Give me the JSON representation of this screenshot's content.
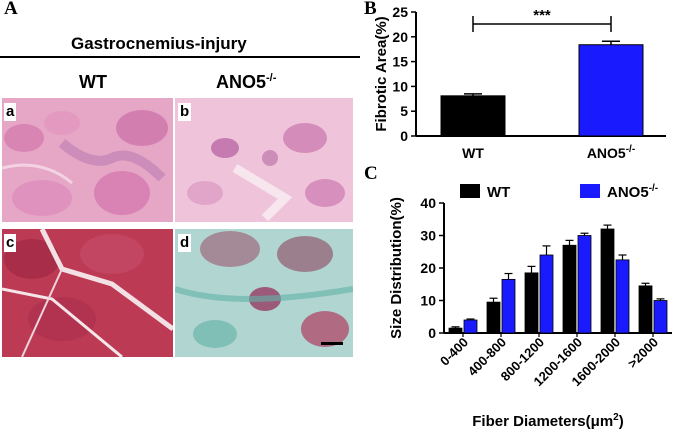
{
  "panel_a": {
    "letter": "A",
    "title": "Gastrocnemius-injury",
    "col_wt": "WT",
    "col_ano5": "ANO5",
    "col_ano5_sup": "-/-",
    "tiles": [
      "a",
      "b",
      "c",
      "d"
    ]
  },
  "chart_data": [
    {
      "panel": "B",
      "type": "bar",
      "categories": [
        "WT",
        "ANO5-/-"
      ],
      "category_labels": [
        {
          "main": "WT",
          "sup": ""
        },
        {
          "main": "ANO5",
          "sup": "-/-"
        }
      ],
      "values": [
        8.1,
        18.4
      ],
      "errors": [
        0.4,
        0.7
      ],
      "colors": [
        "#000000",
        "#1a1aff"
      ],
      "ylabel": "Fibrotic Area(%)",
      "ylim": [
        0,
        25
      ],
      "yticks": [
        0,
        5,
        10,
        15,
        20,
        25
      ],
      "significance": "***"
    },
    {
      "panel": "C",
      "type": "bar",
      "categories": [
        "0-400",
        "400-800",
        "800-1200",
        "1200-1600",
        "1600-2000",
        ">2000"
      ],
      "series": [
        {
          "name": "WT",
          "values": [
            1.5,
            9.5,
            18.5,
            27,
            32,
            14.5
          ],
          "errors": [
            0.4,
            1.2,
            2.0,
            1.5,
            1.2,
            0.8
          ],
          "color": "#000000"
        },
        {
          "name": "ANO5-/-",
          "name_main": "ANO5",
          "name_sup": "-/-",
          "values": [
            4,
            16.5,
            24,
            30,
            22.5,
            10
          ],
          "errors": [
            0.3,
            1.8,
            2.8,
            0.7,
            1.5,
            0.5
          ],
          "color": "#1a1aff"
        }
      ],
      "ylabel": "Size Distribution(%)",
      "xlabel": "Fiber Diameters(μm",
      "xlabel_sup": "2",
      "xlabel_close": ")",
      "ylim": [
        0,
        40
      ],
      "yticks": [
        0,
        10,
        20,
        30,
        40
      ]
    }
  ]
}
